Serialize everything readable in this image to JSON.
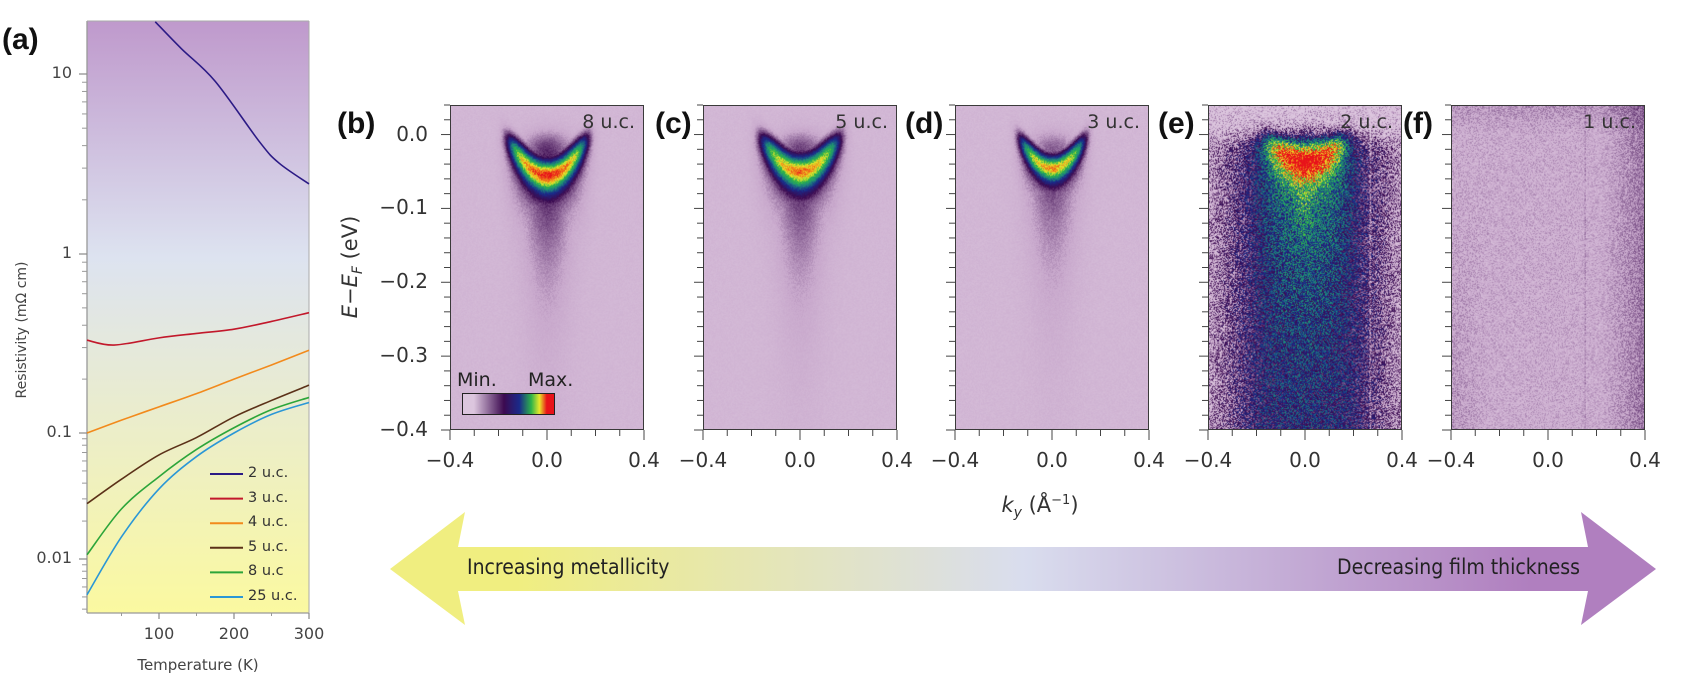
{
  "figure": {
    "panel_labels": [
      "(a)",
      "(b)",
      "(c)",
      "(d)",
      "(e)",
      "(f)"
    ]
  },
  "chart_data": {
    "type": "line",
    "title": "",
    "xlabel": "Temperature (K)",
    "ylabel": "Resistivity (mΩ cm)",
    "xlim": [
      4,
      300
    ],
    "ylim": [
      0.0037,
      19.5
    ],
    "yscale": "log",
    "xticks": [
      "100",
      "200",
      "300"
    ],
    "yticks": [
      "10",
      "1",
      "0.1",
      "0.01"
    ],
    "grid": false,
    "legend_position": "bottom-right",
    "background": {
      "top": "#bf99cc",
      "middle": "#dde3f0",
      "bottom": "#fbf9a0"
    },
    "series": [
      {
        "name": "2 u.c.",
        "color": "#2b1a85",
        "x": [
          95,
          130,
          175,
          234,
          260,
          300
        ],
        "y": [
          19.5,
          13.8,
          9.1,
          4.2,
          3.2,
          2.45
        ]
      },
      {
        "name": "3 u.c.",
        "color": "#c2182b",
        "x": [
          4,
          40,
          100,
          150,
          200,
          250,
          300
        ],
        "y": [
          0.33,
          0.31,
          0.34,
          0.36,
          0.38,
          0.42,
          0.47
        ]
      },
      {
        "name": "4 u.c.",
        "color": "#f28a1c",
        "x": [
          4,
          50,
          100,
          150,
          200,
          250,
          300
        ],
        "y": [
          0.1,
          0.118,
          0.14,
          0.166,
          0.2,
          0.24,
          0.29
        ]
      },
      {
        "name": "5 u.c.",
        "color": "#5b3118",
        "x": [
          4,
          50,
          100,
          150,
          200,
          250,
          300
        ],
        "y": [
          0.0275,
          0.043,
          0.067,
          0.092,
          0.123,
          0.152,
          0.185
        ]
      },
      {
        "name": "8 u.c",
        "color": "#2ca53a",
        "x": [
          4,
          50,
          100,
          150,
          200,
          250,
          300
        ],
        "y": [
          0.0108,
          0.025,
          0.045,
          0.074,
          0.107,
          0.135,
          0.158
        ]
      },
      {
        "name": "25 u.c.",
        "color": "#2a97d6",
        "x": [
          4,
          50,
          100,
          150,
          200,
          250,
          300
        ],
        "y": [
          0.0052,
          0.015,
          0.036,
          0.065,
          0.1,
          0.127,
          0.148
        ]
      }
    ]
  },
  "arpes": {
    "ylabel_main": "E−E",
    "ylabel_sub": "F",
    "ylabel_unit": " (eV)",
    "xlabel_main": "k",
    "xlabel_sub": "y",
    "xlabel_unit": " (Å",
    "xlabel_exp": "−1",
    "xlabel_close": ")",
    "yticks": [
      "0.0",
      "−0.1",
      "−0.2",
      "−0.3",
      "−0.4"
    ],
    "xticks": [
      "−0.4",
      "0.0",
      "0.4"
    ],
    "ylim": [
      -0.4,
      0.04
    ],
    "xlim": [
      -0.4,
      0.4
    ],
    "colorbar": {
      "min_label": "Min.",
      "max_label": "Max.",
      "colors": [
        "#dcc6de",
        "#3c0a50",
        "#1a2a8a",
        "#2db34a",
        "#e8e82a",
        "#e8121a"
      ]
    },
    "panels": [
      {
        "label": "(b)",
        "thickness": "8 u.c."
      },
      {
        "label": "(c)",
        "thickness": "5 u.c."
      },
      {
        "label": "(d)",
        "thickness": "3 u.c."
      },
      {
        "label": "(e)",
        "thickness": "2 u.c."
      },
      {
        "label": "(f)",
        "thickness": "1 u.c."
      }
    ]
  },
  "arrow": {
    "left_text": "Increasing metallicity",
    "right_text": "Decreasing film thickness",
    "colors": [
      "#f0ee80",
      "#d9ddee",
      "#b07fbf"
    ]
  }
}
